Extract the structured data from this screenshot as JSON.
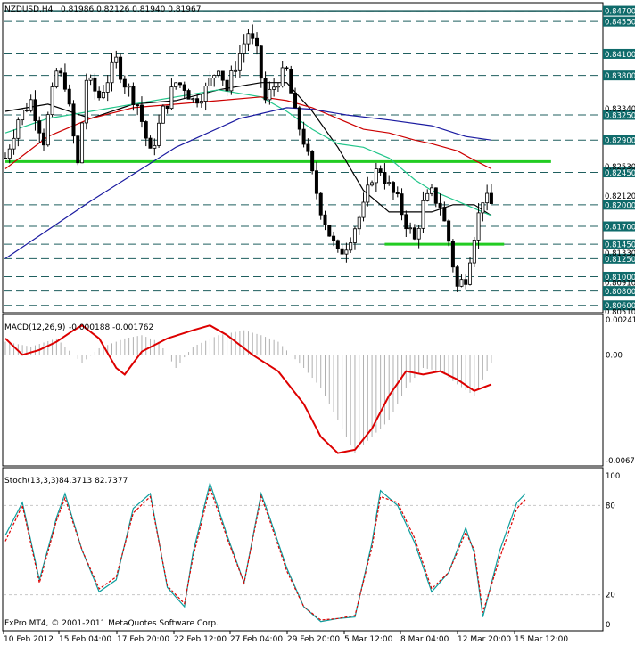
{
  "header": {
    "symbol": "NZDUSD,H4",
    "ohlc": "0.81986 0.82126 0.81940 0.81967"
  },
  "copyright": "FxPro MT4, © 2001-2011 MetaQuotes Software Corp.",
  "colors": {
    "bull_fill": "#ffffff",
    "candle": "#000000",
    "level_line": "#1f5f5f",
    "green_line": "#22cc22",
    "ma_black": "#000000",
    "ma_green": "#22c58a",
    "ma_red": "#cc0000",
    "ma_blue": "#1a1aa0",
    "macd_line": "#dd0000",
    "stoch_main": "#0e9e9e",
    "stoch_signal": "#dd0000",
    "price_label_bg": "#0f6b6b"
  },
  "chart_data": [
    {
      "type": "candlestick",
      "name": "NZDUSD,H4",
      "ylim": [
        0.8051,
        0.848
      ],
      "horizontal_levels": [
        0.847,
        0.8455,
        0.841,
        0.838,
        0.8325,
        0.829,
        0.8245,
        0.82,
        0.817,
        0.8145,
        0.8125,
        0.81,
        0.808,
        0.806
      ],
      "green_levels": [
        {
          "price": 0.826,
          "from_x": "10 Feb 2012",
          "to_x": "15 Mar 12:00"
        },
        {
          "price": 0.8145,
          "from_x": "5 Mar 12:00",
          "to_x": "12 Mar 20:00"
        }
      ],
      "price_scale": {
        "boxed": [
          "0.84700",
          "0.84550",
          "0.84100",
          "0.83800",
          "0.83250",
          "0.82900",
          "0.82450",
          "0.82000",
          "0.81700",
          "0.81450",
          "0.81250",
          "0.81000",
          "0.80800",
          "0.80600"
        ],
        "plain": [
          "0.83340",
          "0.82530",
          "0.82120",
          "0.81330",
          "0.80910",
          "0.80510"
        ]
      },
      "x_labels": [
        "10 Feb 2012",
        "15 Feb 04:00",
        "17 Feb 20:00",
        "22 Feb 12:00",
        "27 Feb 04:00",
        "29 Feb 20:00",
        "5 Mar 12:00",
        "8 Mar 04:00",
        "12 Mar 20:00",
        "15 Mar 12:00"
      ],
      "close_points": [
        {
          "x": 0,
          "close": 0.8265
        },
        {
          "x": 3,
          "close": 0.832
        },
        {
          "x": 6,
          "close": 0.8345
        },
        {
          "x": 9,
          "close": 0.829
        },
        {
          "x": 12,
          "close": 0.8385
        },
        {
          "x": 14,
          "close": 0.837
        },
        {
          "x": 17,
          "close": 0.8255
        },
        {
          "x": 19,
          "close": 0.8375
        },
        {
          "x": 22,
          "close": 0.835
        },
        {
          "x": 26,
          "close": 0.84
        },
        {
          "x": 28,
          "close": 0.837
        },
        {
          "x": 31,
          "close": 0.834
        },
        {
          "x": 34,
          "close": 0.827
        },
        {
          "x": 37,
          "close": 0.833
        },
        {
          "x": 40,
          "close": 0.837
        },
        {
          "x": 42,
          "close": 0.8365
        },
        {
          "x": 44,
          "close": 0.8345
        },
        {
          "x": 47,
          "close": 0.836
        },
        {
          "x": 50,
          "close": 0.8395
        },
        {
          "x": 52,
          "close": 0.836
        },
        {
          "x": 54,
          "close": 0.8395
        },
        {
          "x": 57,
          "close": 0.844
        },
        {
          "x": 59,
          "close": 0.841
        },
        {
          "x": 61,
          "close": 0.8345
        },
        {
          "x": 64,
          "close": 0.8375
        },
        {
          "x": 66,
          "close": 0.8385
        },
        {
          "x": 68,
          "close": 0.8325
        },
        {
          "x": 70,
          "close": 0.829
        },
        {
          "x": 72,
          "close": 0.824
        },
        {
          "x": 74,
          "close": 0.8195
        },
        {
          "x": 76,
          "close": 0.816
        },
        {
          "x": 78,
          "close": 0.813
        },
        {
          "x": 80,
          "close": 0.8145
        },
        {
          "x": 82,
          "close": 0.817
        },
        {
          "x": 84,
          "close": 0.8195
        },
        {
          "x": 86,
          "close": 0.824
        },
        {
          "x": 88,
          "close": 0.825
        },
        {
          "x": 90,
          "close": 0.8225
        },
        {
          "x": 92,
          "close": 0.8205
        },
        {
          "x": 94,
          "close": 0.8175
        },
        {
          "x": 96,
          "close": 0.815
        },
        {
          "x": 98,
          "close": 0.82
        },
        {
          "x": 100,
          "close": 0.8215
        },
        {
          "x": 102,
          "close": 0.82
        },
        {
          "x": 104,
          "close": 0.815
        },
        {
          "x": 106,
          "close": 0.8085
        },
        {
          "x": 108,
          "close": 0.81
        },
        {
          "x": 110,
          "close": 0.816
        },
        {
          "x": 112,
          "close": 0.821
        },
        {
          "x": 114,
          "close": 0.82
        }
      ],
      "ma_series": [
        {
          "color_key": "ma_black",
          "points": [
            [
              0,
              0.833
            ],
            [
              10,
              0.834
            ],
            [
              20,
              0.832
            ],
            [
              30,
              0.834
            ],
            [
              40,
              0.8345
            ],
            [
              50,
              0.836
            ],
            [
              60,
              0.837
            ],
            [
              66,
              0.837
            ],
            [
              72,
              0.833
            ],
            [
              78,
              0.828
            ],
            [
              84,
              0.822
            ],
            [
              90,
              0.819
            ],
            [
              96,
              0.819
            ],
            [
              100,
              0.819
            ],
            [
              105,
              0.82
            ],
            [
              110,
              0.82
            ],
            [
              114,
              0.8185
            ]
          ]
        },
        {
          "color_key": "ma_green",
          "points": [
            [
              0,
              0.83
            ],
            [
              10,
              0.832
            ],
            [
              20,
              0.833
            ],
            [
              30,
              0.834
            ],
            [
              40,
              0.835
            ],
            [
              50,
              0.836
            ],
            [
              60,
              0.835
            ],
            [
              66,
              0.833
            ],
            [
              72,
              0.8305
            ],
            [
              78,
              0.8285
            ],
            [
              84,
              0.828
            ],
            [
              90,
              0.8265
            ],
            [
              96,
              0.8235
            ],
            [
              100,
              0.822
            ],
            [
              106,
              0.8205
            ],
            [
              110,
              0.8195
            ],
            [
              114,
              0.8185
            ]
          ]
        },
        {
          "color_key": "ma_red",
          "points": [
            [
              0,
              0.825
            ],
            [
              10,
              0.8295
            ],
            [
              20,
              0.832
            ],
            [
              30,
              0.8335
            ],
            [
              40,
              0.834
            ],
            [
              50,
              0.8345
            ],
            [
              60,
              0.835
            ],
            [
              66,
              0.8345
            ],
            [
              72,
              0.8335
            ],
            [
              78,
              0.832
            ],
            [
              84,
              0.8305
            ],
            [
              90,
              0.83
            ],
            [
              96,
              0.829
            ],
            [
              100,
              0.8285
            ],
            [
              106,
              0.8275
            ],
            [
              110,
              0.8262
            ],
            [
              114,
              0.825
            ]
          ]
        },
        {
          "color_key": "ma_blue",
          "points": [
            [
              0,
              0.8125
            ],
            [
              20,
              0.8205
            ],
            [
              40,
              0.828
            ],
            [
              55,
              0.832
            ],
            [
              66,
              0.8335
            ],
            [
              72,
              0.8333
            ],
            [
              80,
              0.8325
            ],
            [
              90,
              0.8318
            ],
            [
              100,
              0.831
            ],
            [
              108,
              0.8295
            ],
            [
              114,
              0.829
            ]
          ]
        }
      ]
    },
    {
      "type": "bar",
      "name": "MACD(12,26,9)",
      "header_values": "-0.000188 -0.001762",
      "ylim": [
        -0.00673,
        0.00241
      ],
      "y_tick_labels": [
        "0.00241",
        "0.00",
        "-0.00673"
      ],
      "histogram": [
        [
          0,
          0.0008
        ],
        [
          6,
          0.0005
        ],
        [
          12,
          0.001
        ],
        [
          18,
          -0.0005
        ],
        [
          22,
          0.0004
        ],
        [
          28,
          0.001
        ],
        [
          32,
          0.0012
        ],
        [
          36,
          0.0008
        ],
        [
          40,
          -0.0008
        ],
        [
          44,
          0.0005
        ],
        [
          50,
          0.0012
        ],
        [
          56,
          0.0015
        ],
        [
          60,
          0.0012
        ],
        [
          64,
          0.0008
        ],
        [
          70,
          -0.0008
        ],
        [
          74,
          -0.002
        ],
        [
          78,
          -0.004
        ],
        [
          82,
          -0.006
        ],
        [
          86,
          -0.005
        ],
        [
          90,
          -0.004
        ],
        [
          94,
          -0.002
        ],
        [
          98,
          -0.0008
        ],
        [
          102,
          -0.001
        ],
        [
          106,
          -0.0018
        ],
        [
          110,
          -0.0025
        ],
        [
          114,
          -0.0005
        ]
      ],
      "signal": [
        [
          0,
          0.001
        ],
        [
          4,
          0.0
        ],
        [
          8,
          0.0003
        ],
        [
          12,
          0.0008
        ],
        [
          16,
          0.0015
        ],
        [
          18,
          0.0018
        ],
        [
          22,
          0.001
        ],
        [
          26,
          -0.0008
        ],
        [
          28,
          -0.0012
        ],
        [
          32,
          0.0002
        ],
        [
          38,
          0.001
        ],
        [
          44,
          0.0015
        ],
        [
          48,
          0.0018
        ],
        [
          52,
          0.0012
        ],
        [
          58,
          0.0
        ],
        [
          64,
          -0.001
        ],
        [
          70,
          -0.003
        ],
        [
          74,
          -0.005
        ],
        [
          78,
          -0.006
        ],
        [
          82,
          -0.0058
        ],
        [
          86,
          -0.0045
        ],
        [
          90,
          -0.0025
        ],
        [
          94,
          -0.001
        ],
        [
          98,
          -0.0012
        ],
        [
          102,
          -0.001
        ],
        [
          106,
          -0.0015
        ],
        [
          110,
          -0.0022
        ],
        [
          114,
          -0.0018
        ]
      ]
    },
    {
      "type": "line",
      "name": "Stoch(13,3,3)",
      "header_values": "84.3713 82.7377",
      "ylim": [
        0,
        100
      ],
      "y_tick_labels": [
        "100",
        "80",
        "20",
        "0"
      ],
      "series": [
        {
          "name": "main",
          "color_key": "stoch_main",
          "points": [
            [
              0,
              60
            ],
            [
              4,
              82
            ],
            [
              8,
              30
            ],
            [
              12,
              72
            ],
            [
              14,
              88
            ],
            [
              18,
              50
            ],
            [
              22,
              22
            ],
            [
              26,
              30
            ],
            [
              30,
              78
            ],
            [
              34,
              88
            ],
            [
              38,
              25
            ],
            [
              42,
              12
            ],
            [
              44,
              48
            ],
            [
              48,
              95
            ],
            [
              52,
              60
            ],
            [
              56,
              28
            ],
            [
              60,
              88
            ],
            [
              62,
              72
            ],
            [
              66,
              38
            ],
            [
              70,
              12
            ],
            [
              74,
              2
            ],
            [
              78,
              4
            ],
            [
              82,
              5
            ],
            [
              86,
              55
            ],
            [
              88,
              90
            ],
            [
              92,
              80
            ],
            [
              96,
              55
            ],
            [
              100,
              22
            ],
            [
              104,
              35
            ],
            [
              108,
              65
            ],
            [
              110,
              48
            ],
            [
              112,
              5
            ],
            [
              116,
              50
            ],
            [
              120,
              82
            ],
            [
              122,
              88
            ]
          ]
        },
        {
          "name": "signal",
          "color_key": "stoch_signal",
          "points": [
            [
              0,
              56
            ],
            [
              4,
              80
            ],
            [
              8,
              28
            ],
            [
              12,
              70
            ],
            [
              14,
              85
            ],
            [
              18,
              50
            ],
            [
              22,
              24
            ],
            [
              26,
              32
            ],
            [
              30,
              75
            ],
            [
              34,
              86
            ],
            [
              38,
              26
            ],
            [
              42,
              14
            ],
            [
              44,
              45
            ],
            [
              48,
              92
            ],
            [
              52,
              58
            ],
            [
              56,
              28
            ],
            [
              60,
              86
            ],
            [
              62,
              70
            ],
            [
              66,
              36
            ],
            [
              70,
              12
            ],
            [
              74,
              3
            ],
            [
              78,
              4
            ],
            [
              82,
              6
            ],
            [
              86,
              52
            ],
            [
              88,
              86
            ],
            [
              92,
              82
            ],
            [
              96,
              58
            ],
            [
              100,
              24
            ],
            [
              104,
              35
            ],
            [
              108,
              62
            ],
            [
              110,
              50
            ],
            [
              112,
              8
            ],
            [
              116,
              45
            ],
            [
              120,
              78
            ],
            [
              122,
              84
            ]
          ]
        }
      ]
    }
  ]
}
